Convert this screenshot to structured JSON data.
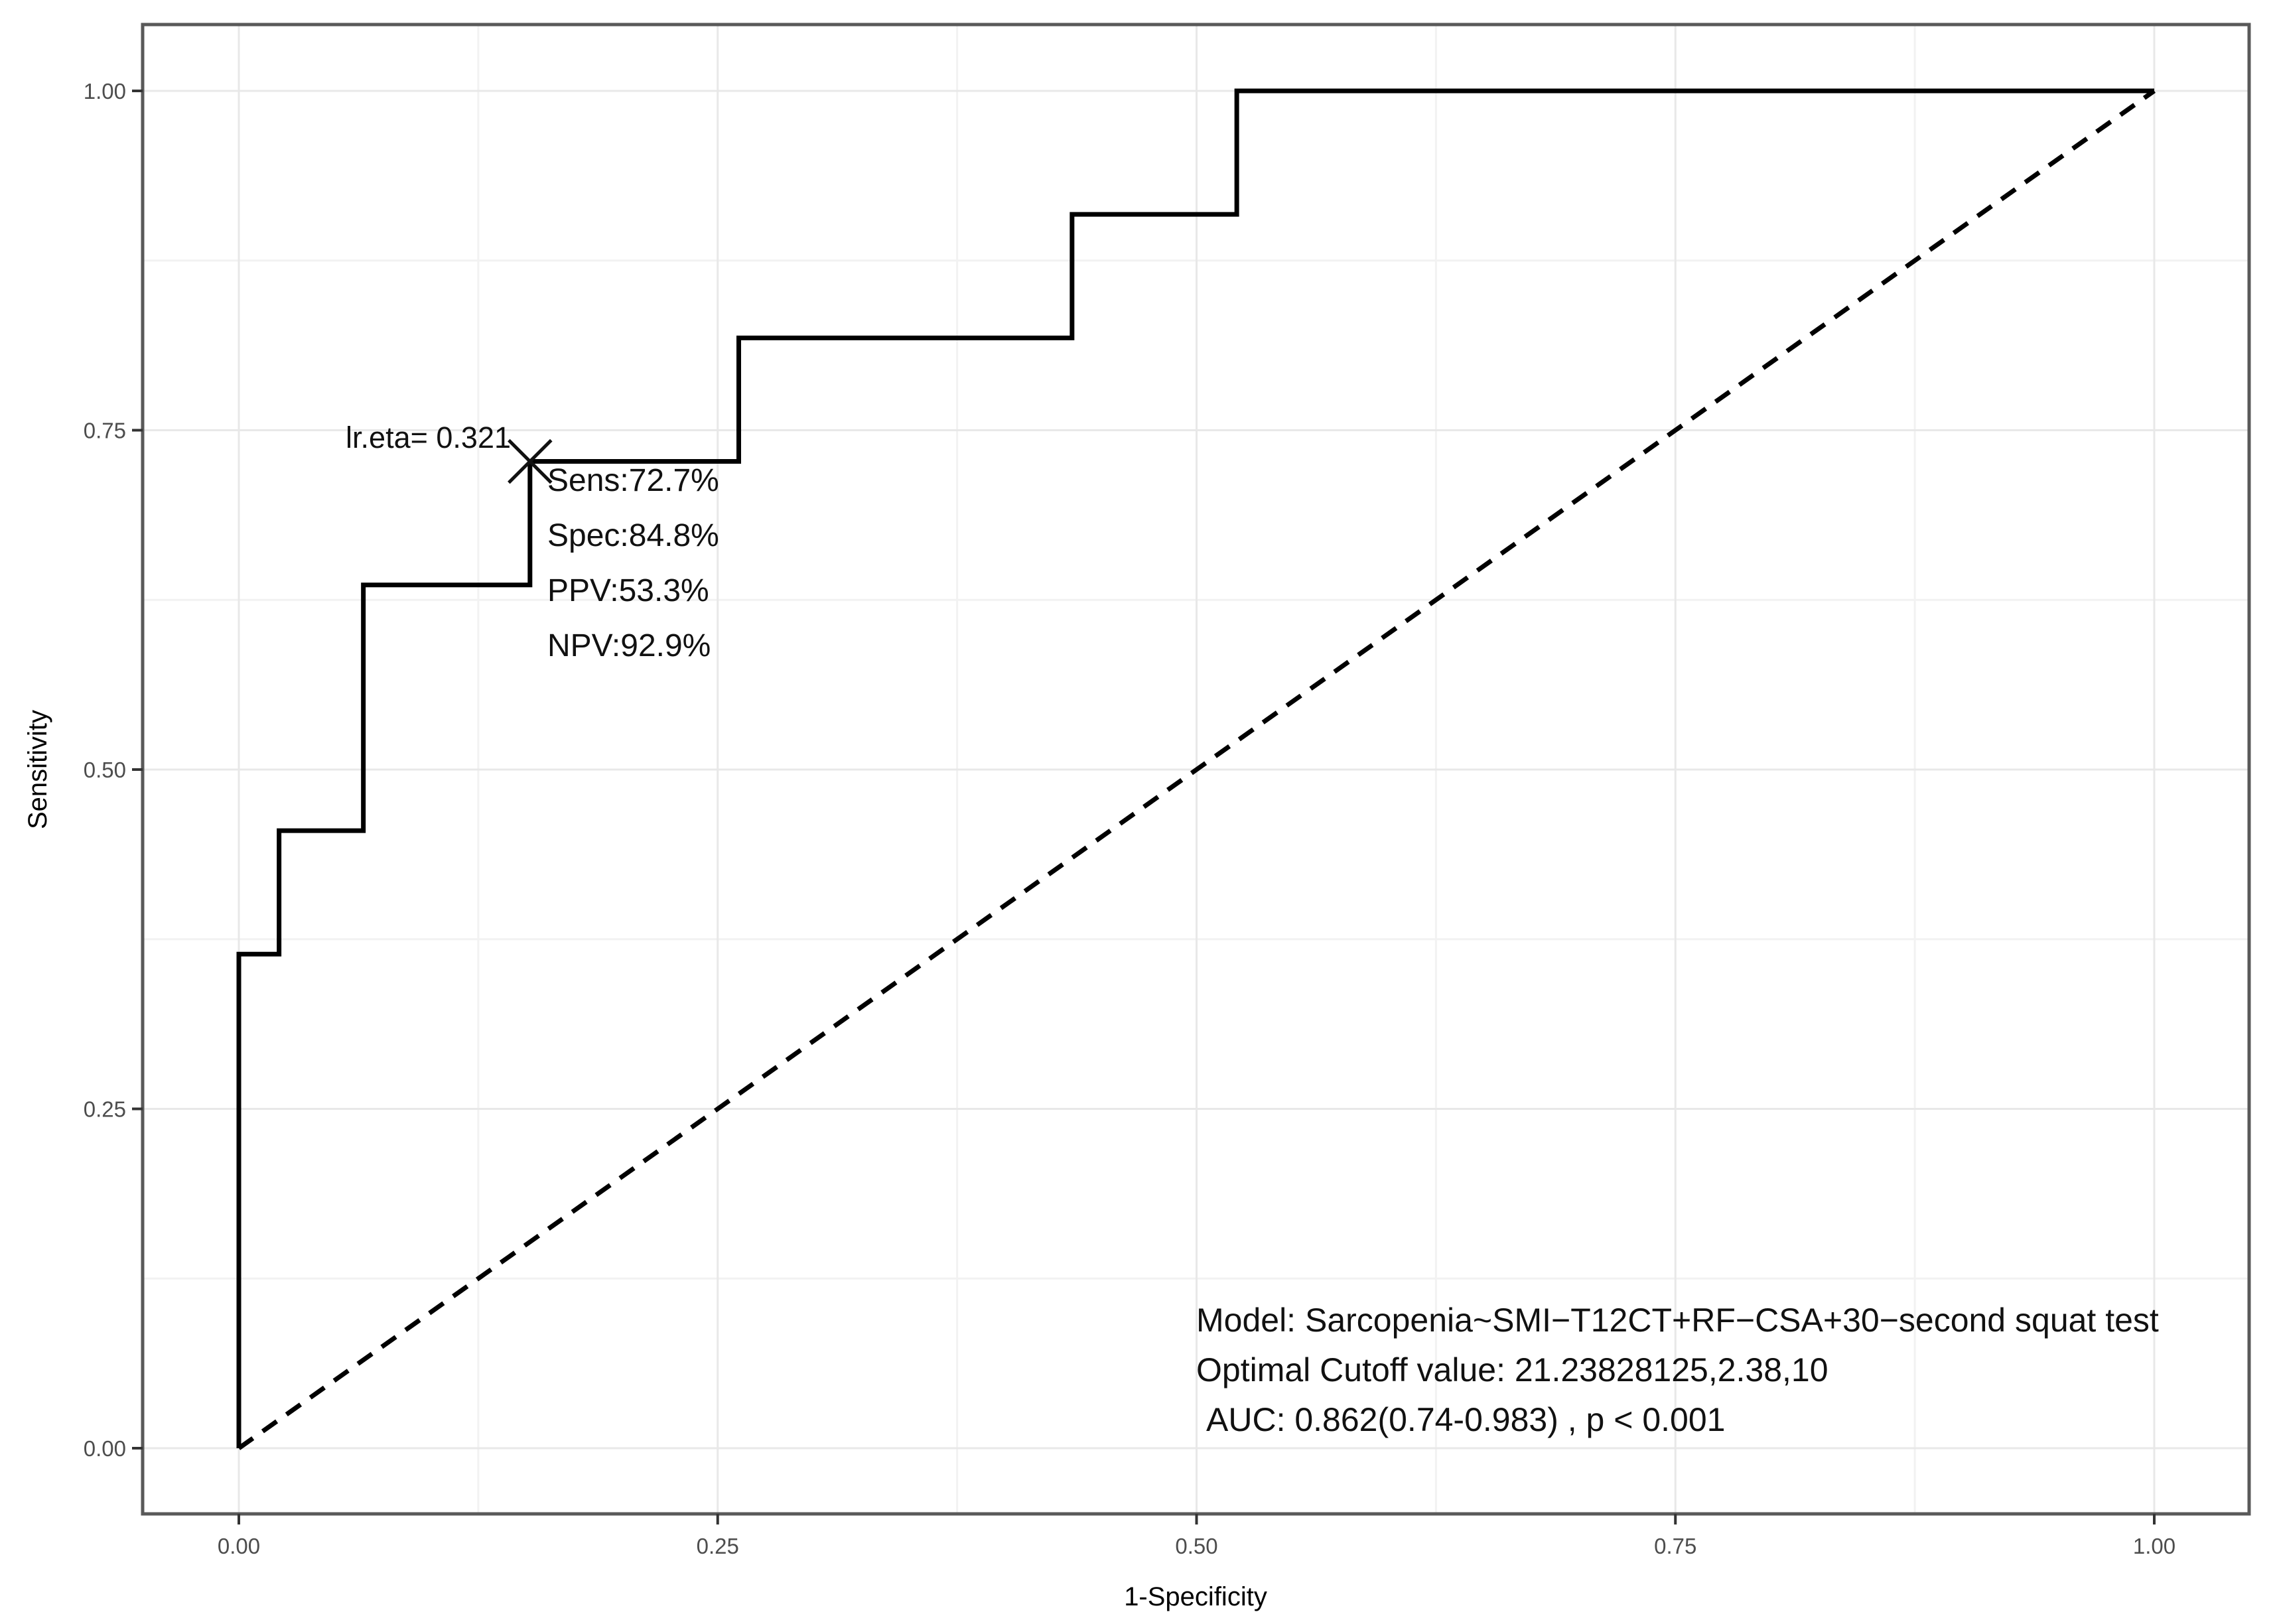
{
  "chart_data": {
    "type": "line",
    "subtype": "roc-step-curve",
    "title": "",
    "xlabel": "1-Specificity",
    "ylabel": "Sensitivity",
    "xlim": [
      0,
      1
    ],
    "ylim": [
      0,
      1
    ],
    "grid": "on",
    "legend_position": "none",
    "x_ticks": {
      "values": [
        0,
        0.25,
        0.5,
        0.75,
        1
      ],
      "labels": [
        "0.00",
        "0.25",
        "0.50",
        "0.75",
        "1.00"
      ]
    },
    "y_ticks": {
      "values": [
        0,
        0.25,
        0.5,
        0.75,
        1
      ],
      "labels": [
        "0.00",
        "0.25",
        "0.50",
        "0.75",
        "1.00"
      ]
    },
    "minor_ticks": [
      0.125,
      0.375,
      0.625,
      0.875
    ],
    "series": [
      {
        "name": "ROC curve",
        "dashed": false,
        "points": [
          [
            0,
            0
          ],
          [
            0,
            0.364
          ],
          [
            0.021,
            0.364
          ],
          [
            0.021,
            0.455
          ],
          [
            0.065,
            0.455
          ],
          [
            0.065,
            0.636
          ],
          [
            0.152,
            0.636
          ],
          [
            0.152,
            0.727
          ],
          [
            0.261,
            0.727
          ],
          [
            0.261,
            0.818
          ],
          [
            0.435,
            0.818
          ],
          [
            0.435,
            0.909
          ],
          [
            0.521,
            0.909
          ],
          [
            0.521,
            1.0
          ],
          [
            1.0,
            1.0
          ]
        ]
      },
      {
        "name": "Reference diagonal",
        "dashed": true,
        "points": [
          [
            0,
            0
          ],
          [
            1,
            1
          ]
        ]
      }
    ],
    "cutoff_marker": {
      "shape": "x",
      "x": 0.152,
      "y": 0.727
    },
    "annotations": {
      "cutoff_label": "lr.eta= 0.321",
      "metrics": [
        "Sens:72.7%",
        "Spec:84.8%",
        "PPV:53.3%",
        "NPV:92.9%"
      ],
      "model_lines": [
        "Model: Sarcopenia~SMI−T12CT+RF−CSA+30−second squat test",
        "Optimal Cutoff value:  21.23828125,2.38,10",
        "AUC:  0.862(0.74-0.983) , p < 0.001"
      ]
    },
    "stats": {
      "lr_eta": 0.321,
      "sensitivity_pct": 72.7,
      "specificity_pct": 84.8,
      "ppv_pct": 53.3,
      "npv_pct": 92.9,
      "optimal_cutoff_value": "21.23828125,2.38,10",
      "auc": 0.862,
      "auc_ci": "0.74-0.983",
      "p_value": "< 0.001"
    },
    "colors": {
      "curve": "#000000",
      "marker": "#111111",
      "grid_major": "#e8e8e8",
      "grid_minor": "#f2f2f2",
      "panel_border": "#595959",
      "panel_bg": "#ffffff",
      "tick": "#333333",
      "tick_label": "#4d4d4d"
    }
  }
}
